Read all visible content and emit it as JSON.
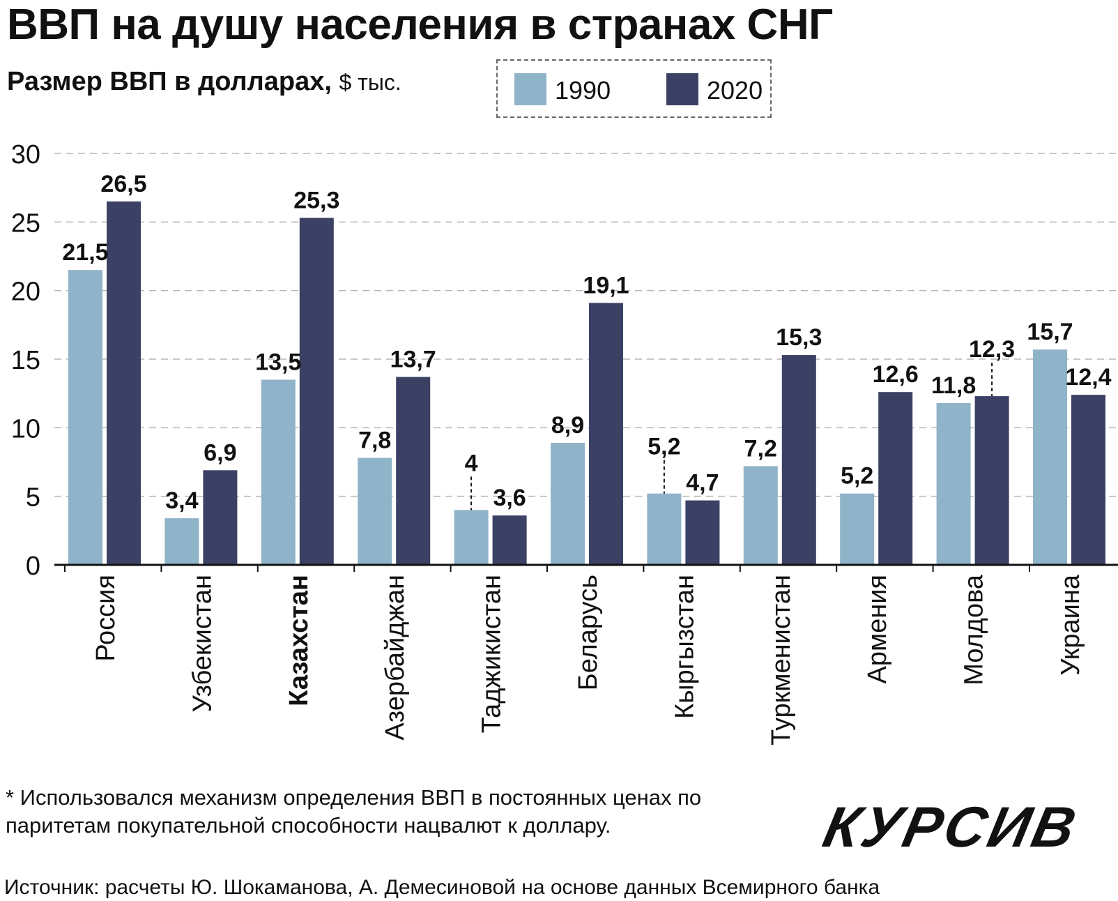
{
  "title": "ВВП на душу населения в странах СНГ",
  "subtitle": {
    "main": "Размер ВВП в долларах,",
    "unit": "$ тыс."
  },
  "legend": [
    {
      "label": "1990",
      "color": "#8fb3c9"
    },
    {
      "label": "2020",
      "color": "#3b4164"
    }
  ],
  "chart_data": {
    "type": "bar",
    "categories": [
      "Россия",
      "Узбекистан",
      "Казахстан",
      "Азербайджан",
      "Таджикистан",
      "Беларусь",
      "Кыргызстан",
      "Туркменистан",
      "Армения",
      "Молдова",
      "Украина"
    ],
    "bold_category": "Казахстан",
    "series": [
      {
        "name": "1990",
        "color": "#8fb3c9",
        "values": [
          21.5,
          3.4,
          13.5,
          7.8,
          4,
          8.9,
          5.2,
          7.2,
          5.2,
          11.8,
          15.7
        ],
        "labels": [
          "21,5",
          "3,4",
          "13,5",
          "7,8",
          "4",
          "8,9",
          "5,2",
          "7,2",
          "5,2",
          "11,8",
          "15,7"
        ]
      },
      {
        "name": "2020",
        "color": "#3b4164",
        "values": [
          26.5,
          6.9,
          25.3,
          13.7,
          3.6,
          19.1,
          4.7,
          15.3,
          12.6,
          12.3,
          12.4
        ],
        "labels": [
          "26,5",
          "6,9",
          "25,3",
          "13,7",
          "3,6",
          "19,1",
          "4,7",
          "15,3",
          "12,6",
          "12,3",
          "12,4"
        ]
      }
    ],
    "yticks": [
      "0",
      "5",
      "10",
      "15",
      "20",
      "25",
      "30"
    ],
    "ylim": [
      0,
      30
    ],
    "grid": true,
    "legend_position": "top"
  },
  "footnote": "* Использовался механизм определения ВВП в постоянных ценах по паритетам покупательной способности нацвалют к доллару.",
  "source": "Источник: расчеты Ю. Шокаманова, А. Демесиновой на основе данных Всемирного банка",
  "logo": "КУРСИВ"
}
